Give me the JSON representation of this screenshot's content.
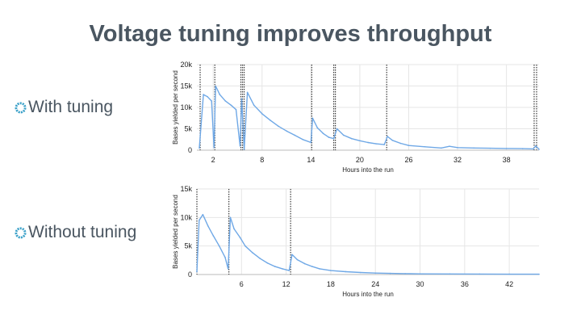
{
  "slide": {
    "title": "Voltage tuning improves throughput",
    "bullets": [
      "With tuning",
      "Without tuning"
    ]
  },
  "colors": {
    "line": "#6fa8e6",
    "grid": "#e6e6e6",
    "marker": "#3a3a3a",
    "text": "#4a5661",
    "bullet_ring": "#3aa0c8"
  },
  "chart_data": [
    {
      "type": "line",
      "name": "With tuning",
      "xlabel": "Hours into the run",
      "ylabel": "Bases yielded per second",
      "xlim": [
        0,
        42
      ],
      "ylim": [
        0,
        20000
      ],
      "xticks": [
        2,
        8,
        14,
        20,
        26,
        32,
        38
      ],
      "yticks": [
        0,
        5000,
        10000,
        15000,
        20000
      ],
      "ytick_labels": [
        "0",
        "5k",
        "10k",
        "15k",
        "20k"
      ],
      "grid": true,
      "vertical_markers": [
        0.4,
        2.2,
        5.4,
        5.6,
        5.8,
        14.1,
        16.8,
        17.0,
        23.3,
        41.4,
        41.7
      ],
      "series": [
        {
          "x": [
            0.3,
            0.8,
            1.3,
            1.8,
            2.1,
            2.3,
            2.8,
            3.5,
            4.2,
            4.8,
            5.3,
            5.5,
            5.8,
            6.2,
            7,
            8,
            9,
            10,
            11,
            12,
            13,
            14,
            14.2,
            14.8,
            15.5,
            16.2,
            16.8,
            17.2,
            18,
            19,
            20,
            21,
            22,
            23,
            23.4,
            24,
            25,
            26,
            28,
            30,
            31,
            32,
            34,
            36,
            38,
            40,
            41.3,
            41.6,
            42
          ],
          "y": [
            500,
            13000,
            12500,
            11500,
            600,
            15000,
            13000,
            11500,
            10500,
            9500,
            1000,
            12000,
            200,
            13500,
            10500,
            8500,
            7000,
            5600,
            4500,
            3500,
            2500,
            1800,
            7500,
            5200,
            3900,
            3000,
            2700,
            5000,
            3500,
            2700,
            2200,
            1800,
            1500,
            1300,
            3200,
            2300,
            1600,
            1100,
            800,
            500,
            900,
            600,
            500,
            450,
            400,
            350,
            300,
            1000,
            200
          ]
        }
      ]
    },
    {
      "type": "line",
      "name": "Without tuning",
      "xlabel": "Hours into the run",
      "ylabel": "Bases yielded per second",
      "xlim": [
        0,
        46
      ],
      "ylim": [
        0,
        15000
      ],
      "xticks": [
        6,
        12,
        18,
        24,
        30,
        36,
        42
      ],
      "yticks": [
        0,
        5000,
        10000,
        15000
      ],
      "ytick_labels": [
        "0",
        "5k",
        "10k",
        "15k"
      ],
      "grid": true,
      "vertical_markers": [
        0.0,
        4.3,
        12.6
      ],
      "series": [
        {
          "x": [
            0,
            0.3,
            0.8,
            1.5,
            2.2,
            3,
            3.8,
            4.2,
            4.5,
            5,
            5.8,
            6.5,
            7.5,
            8.5,
            9.5,
            10.5,
            11.5,
            12.4,
            12.8,
            13.5,
            14.5,
            15.5,
            16.5,
            18,
            20,
            22,
            24,
            26,
            28,
            30,
            34,
            38,
            42,
            46
          ],
          "y": [
            500,
            9500,
            10500,
            8500,
            6800,
            5000,
            3000,
            1000,
            10000,
            8000,
            6500,
            5000,
            3800,
            2800,
            2000,
            1400,
            1000,
            700,
            3500,
            2600,
            1900,
            1400,
            1000,
            700,
            500,
            350,
            250,
            200,
            150,
            120,
            100,
            80,
            60,
            50
          ]
        }
      ]
    }
  ]
}
